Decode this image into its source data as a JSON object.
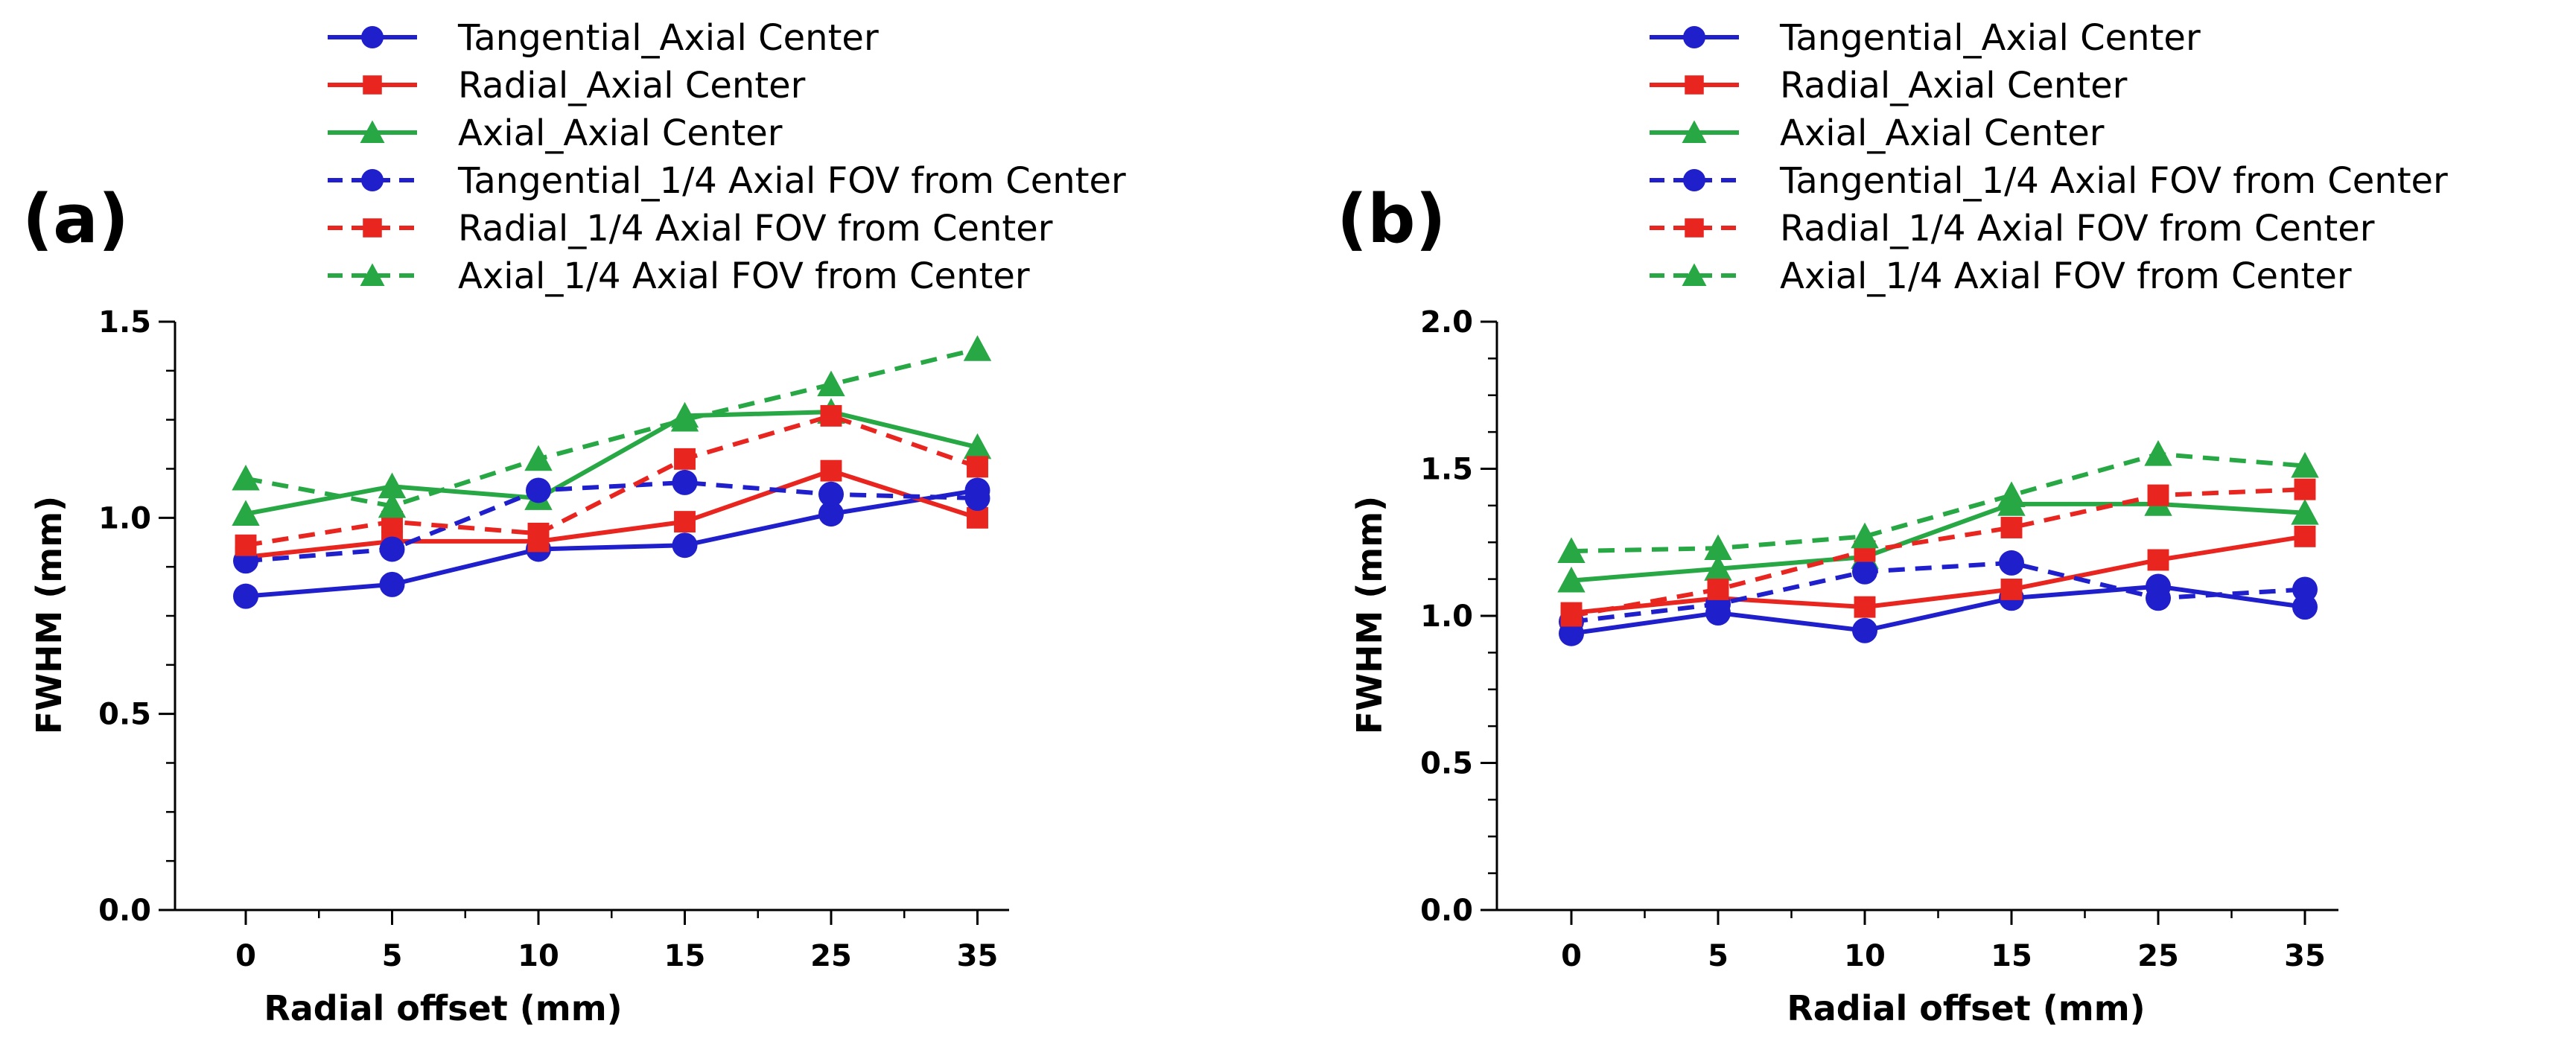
{
  "chart_data": [
    {
      "type": "line",
      "panel_label": "(a)",
      "categories": [
        "0",
        "5",
        "10",
        "15",
        "25",
        "35"
      ],
      "xlabel": "Radial offset (mm)",
      "ylabel": "FWHM (mm)",
      "ylim": [
        0,
        1.5
      ],
      "yticks": [
        0.0,
        0.5,
        1.0,
        1.5
      ],
      "ytick_labels": [
        "0.0",
        "0.5",
        "1.0",
        "1.5"
      ],
      "grid": false,
      "legend_position": "top",
      "series": [
        {
          "name": "Tangential_Axial  Center",
          "color": "#1f1fcc",
          "marker": "circle",
          "dash": "solid",
          "values": [
            0.8,
            0.83,
            0.92,
            0.93,
            1.01,
            1.07
          ]
        },
        {
          "name": "Radial_Axial  Center",
          "color": "#e8251f",
          "marker": "square",
          "dash": "solid",
          "values": [
            0.9,
            0.94,
            0.94,
            0.99,
            1.12,
            1.0
          ]
        },
        {
          "name": "Axial_Axial  Center",
          "color": "#27a844",
          "marker": "triangle",
          "dash": "solid",
          "values": [
            1.01,
            1.08,
            1.05,
            1.26,
            1.27,
            1.18
          ]
        },
        {
          "name": "Tangential_1/4  Axial FOV from Center",
          "color": "#1f1fcc",
          "marker": "circle",
          "dash": "dashed",
          "values": [
            0.89,
            0.92,
            1.07,
            1.09,
            1.06,
            1.05
          ]
        },
        {
          "name": "Radial_1/4  Axial FOV from Center",
          "color": "#e8251f",
          "marker": "square",
          "dash": "dashed",
          "values": [
            0.93,
            0.99,
            0.96,
            1.15,
            1.26,
            1.13
          ]
        },
        {
          "name": "Axial_1/4  Axial FOV from Center",
          "color": "#27a844",
          "marker": "triangle",
          "dash": "dashed",
          "values": [
            1.1,
            1.03,
            1.15,
            1.25,
            1.34,
            1.43
          ]
        }
      ]
    },
    {
      "type": "line",
      "panel_label": "(b)",
      "categories": [
        "0",
        "5",
        "10",
        "15",
        "25",
        "35"
      ],
      "xlabel": "Radial offset (mm)",
      "ylabel": "FWHM (mm)",
      "ylim": [
        0,
        2.0
      ],
      "yticks": [
        0.0,
        0.5,
        1.0,
        1.5,
        2.0
      ],
      "ytick_labels": [
        "0.0",
        "0.5",
        "1.0",
        "1.5",
        "2.0"
      ],
      "grid": false,
      "legend_position": "top",
      "series": [
        {
          "name": "Tangential_Axial  Center",
          "color": "#1f1fcc",
          "marker": "circle",
          "dash": "solid",
          "values": [
            0.94,
            1.01,
            0.95,
            1.06,
            1.1,
            1.03
          ]
        },
        {
          "name": "Radial_Axial  Center",
          "color": "#e8251f",
          "marker": "square",
          "dash": "solid",
          "values": [
            1.01,
            1.06,
            1.03,
            1.09,
            1.19,
            1.27
          ]
        },
        {
          "name": "Axial_Axial  Center",
          "color": "#27a844",
          "marker": "triangle",
          "dash": "solid",
          "values": [
            1.12,
            1.16,
            1.2,
            1.38,
            1.38,
            1.35
          ]
        },
        {
          "name": "Tangential_1/4  Axial FOV from Center",
          "color": "#1f1fcc",
          "marker": "circle",
          "dash": "dashed",
          "values": [
            0.98,
            1.04,
            1.15,
            1.18,
            1.06,
            1.09
          ]
        },
        {
          "name": "Radial_1/4  Axial FOV from Center",
          "color": "#e8251f",
          "marker": "square",
          "dash": "dashed",
          "values": [
            1.0,
            1.09,
            1.22,
            1.3,
            1.41,
            1.43
          ]
        },
        {
          "name": "Axial_1/4  Axial FOV from Center",
          "color": "#27a844",
          "marker": "triangle",
          "dash": "dashed",
          "values": [
            1.22,
            1.23,
            1.27,
            1.41,
            1.55,
            1.51
          ]
        }
      ]
    }
  ]
}
